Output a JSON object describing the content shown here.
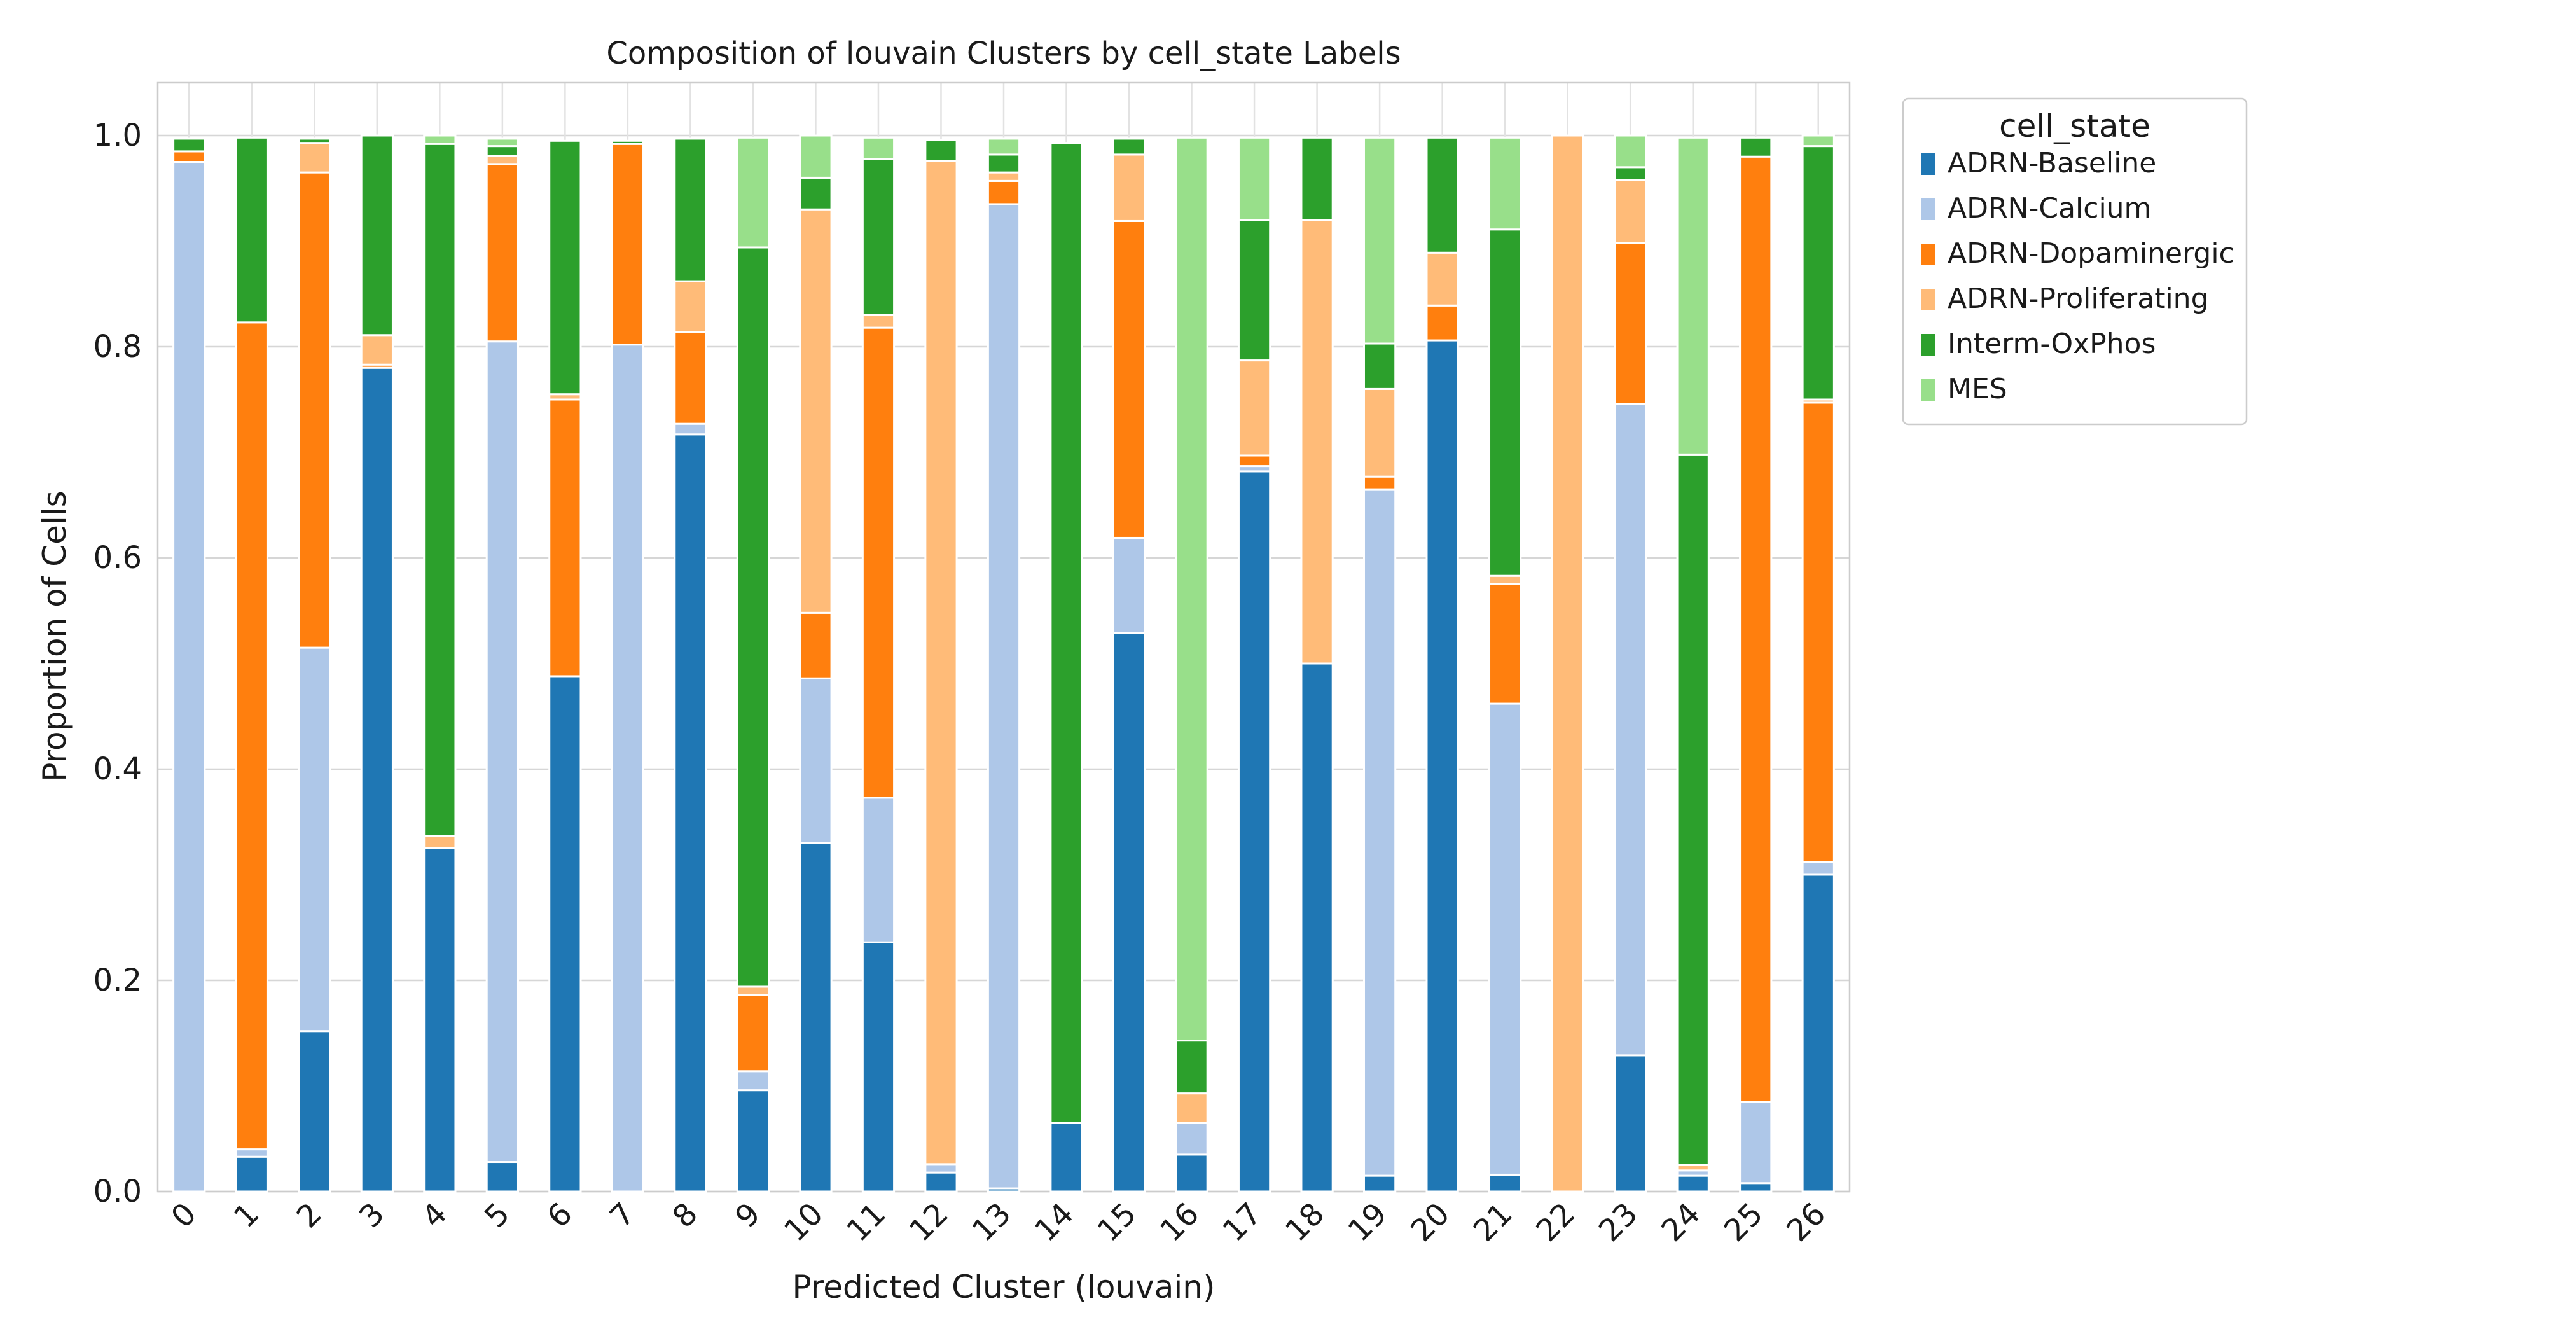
{
  "chart_data": {
    "type": "bar",
    "stacked": true,
    "title": "Composition of louvain Clusters by cell_state Labels",
    "xlabel": "Predicted Cluster (louvain)",
    "ylabel": "Proportion of Cells",
    "ylim": [
      0,
      1.05
    ],
    "yticks": [
      "0.0",
      "0.2",
      "0.4",
      "0.6",
      "0.8",
      "1.0"
    ],
    "ytick_values": [
      0,
      0.2,
      0.4,
      0.6,
      0.8,
      1.0
    ],
    "grid": true,
    "legend_title": "cell_state",
    "legend_position": "outside-right",
    "categories": [
      "0",
      "1",
      "2",
      "3",
      "4",
      "5",
      "6",
      "7",
      "8",
      "9",
      "10",
      "11",
      "12",
      "13",
      "14",
      "15",
      "16",
      "17",
      "18",
      "19",
      "20",
      "21",
      "22",
      "23",
      "24",
      "25",
      "26"
    ],
    "series": [
      {
        "name": "ADRN-Baseline",
        "color": "#1f77b4",
        "values": [
          0.0,
          0.033,
          0.152,
          0.78,
          0.325,
          0.028,
          0.488,
          0.0,
          0.717,
          0.096,
          0.33,
          0.236,
          0.018,
          0.003,
          0.065,
          0.529,
          0.035,
          0.682,
          0.5,
          0.015,
          0.806,
          0.016,
          0.0,
          0.129,
          0.015,
          0.008,
          0.3
        ]
      },
      {
        "name": "ADRN-Calcium",
        "color": "#aec7e8",
        "values": [
          0.975,
          0.007,
          0.363,
          0.0,
          0.0,
          0.777,
          0.0,
          0.802,
          0.01,
          0.018,
          0.156,
          0.137,
          0.008,
          0.932,
          0.0,
          0.09,
          0.03,
          0.005,
          0.0,
          0.65,
          0.0,
          0.446,
          0.0,
          0.617,
          0.005,
          0.077,
          0.012
        ]
      },
      {
        "name": "ADRN-Dopaminergic",
        "color": "#ff7f0e",
        "values": [
          0.01,
          0.783,
          0.45,
          0.003,
          0.0,
          0.168,
          0.262,
          0.19,
          0.087,
          0.072,
          0.062,
          0.445,
          0.0,
          0.022,
          0.0,
          0.3,
          0.0,
          0.01,
          0.0,
          0.012,
          0.033,
          0.113,
          0.0,
          0.152,
          0.0,
          0.895,
          0.435
        ]
      },
      {
        "name": "ADRN-Proliferating",
        "color": "#ffbb78",
        "values": [
          0.0,
          0.0,
          0.028,
          0.028,
          0.012,
          0.008,
          0.005,
          0.0,
          0.048,
          0.008,
          0.382,
          0.012,
          0.95,
          0.008,
          0.0,
          0.063,
          0.028,
          0.09,
          0.42,
          0.083,
          0.05,
          0.008,
          1.0,
          0.06,
          0.005,
          0.0,
          0.003
        ]
      },
      {
        "name": "Interm-OxPhos",
        "color": "#2ca02c",
        "values": [
          0.012,
          0.175,
          0.004,
          0.189,
          0.655,
          0.009,
          0.24,
          0.003,
          0.135,
          0.7,
          0.03,
          0.148,
          0.02,
          0.017,
          0.928,
          0.015,
          0.05,
          0.133,
          0.078,
          0.043,
          0.109,
          0.328,
          0.0,
          0.012,
          0.673,
          0.018,
          0.24
        ]
      },
      {
        "name": "MES",
        "color": "#98df8a",
        "values": [
          0.0,
          0.0,
          0.0,
          0.0,
          0.008,
          0.007,
          0.0,
          0.0,
          0.0,
          0.104,
          0.04,
          0.02,
          0.0,
          0.015,
          0.0,
          0.0,
          0.855,
          0.078,
          0.0,
          0.195,
          0.0,
          0.087,
          0.0,
          0.03,
          0.3,
          0.0,
          0.01
        ]
      }
    ]
  }
}
